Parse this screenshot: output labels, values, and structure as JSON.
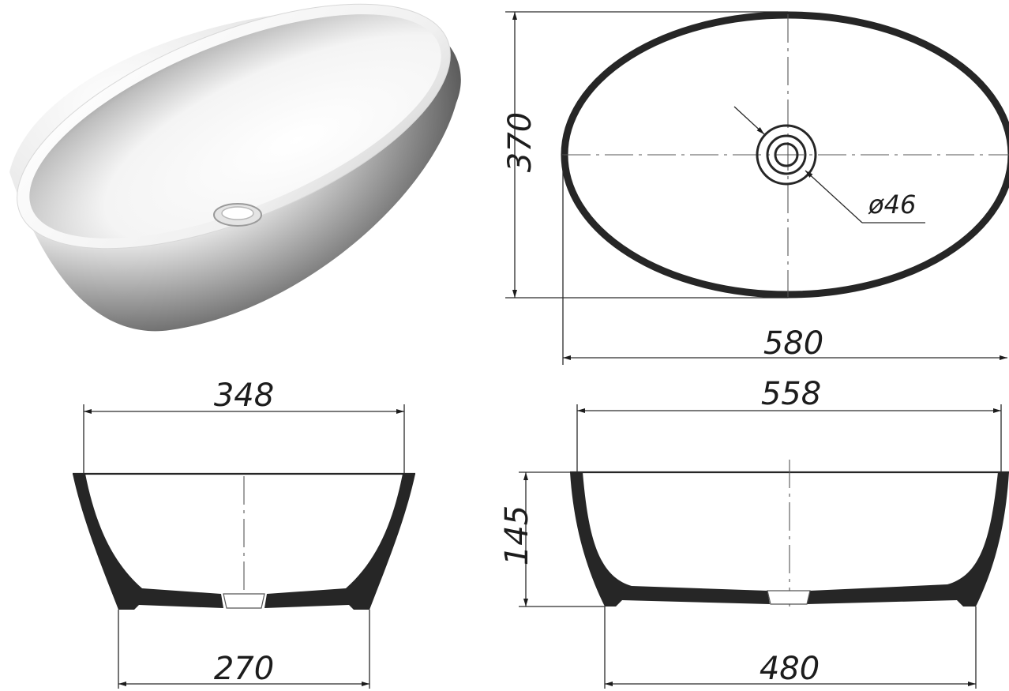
{
  "dimensions": {
    "top_view_length": "580",
    "top_view_width": "370",
    "drain_diameter": "ø46",
    "front_top_width": "348",
    "front_bottom_width": "270",
    "side_top_width": "558",
    "side_bottom_width": "480",
    "height": "145"
  },
  "colors": {
    "line": "#1c1c1c",
    "fill": "#262626",
    "background": "#ffffff"
  }
}
